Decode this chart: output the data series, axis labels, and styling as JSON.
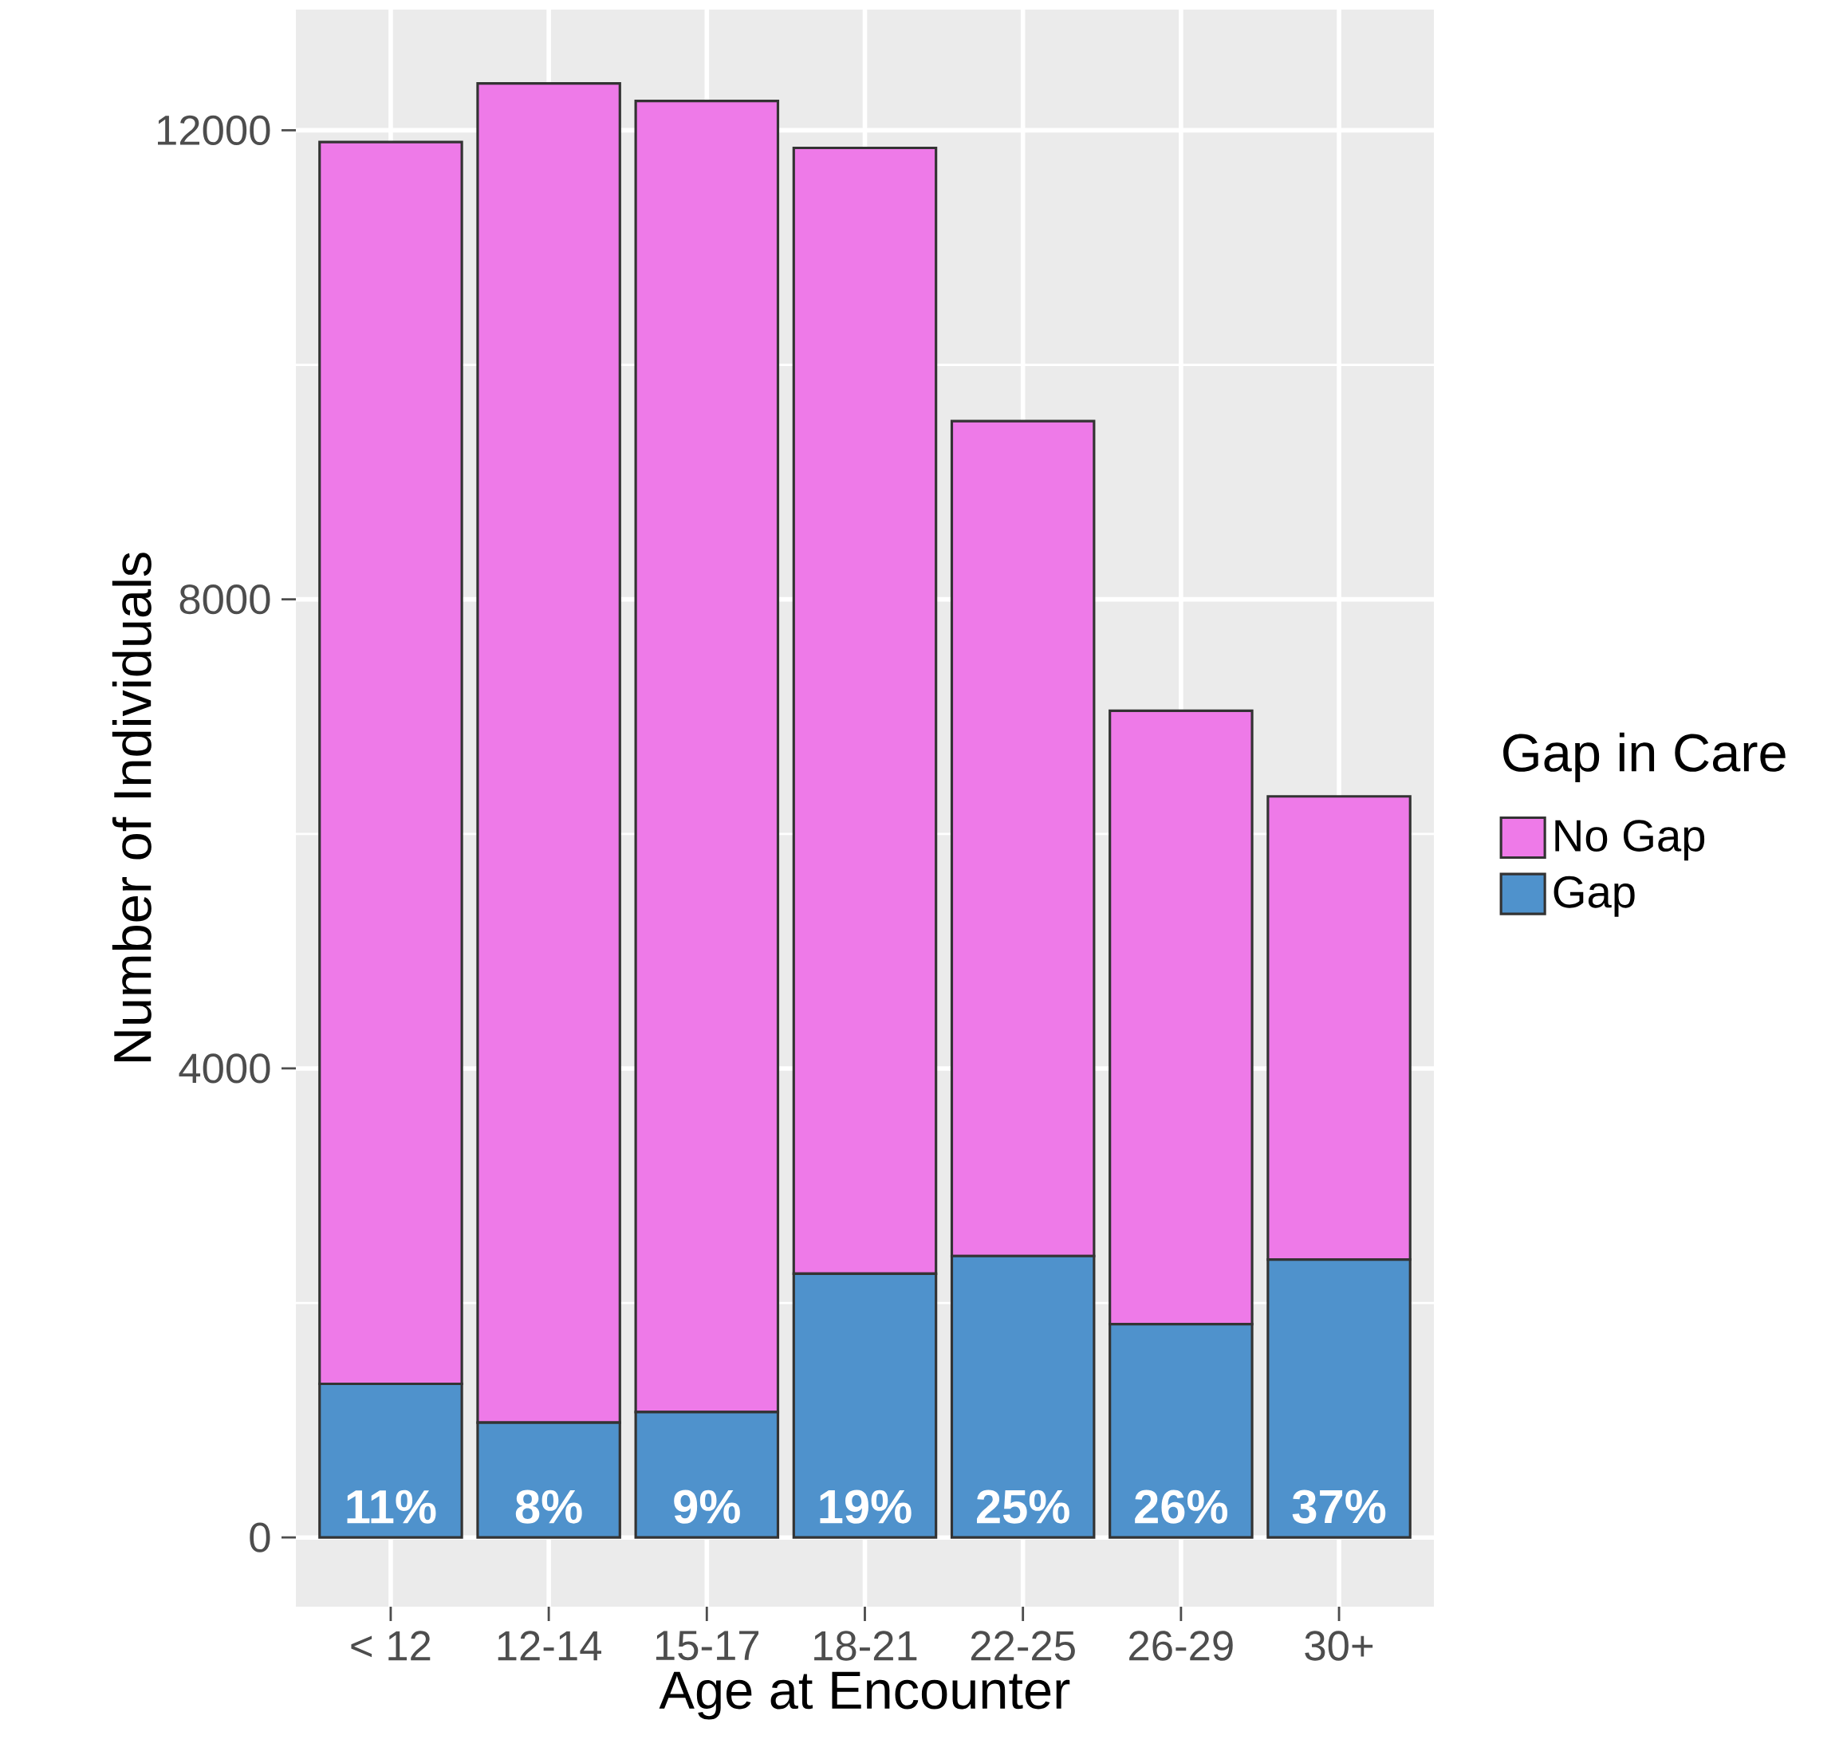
{
  "chart_data": {
    "type": "bar",
    "stacked": true,
    "xlabel": "Age at Encounter",
    "ylabel": "Number of Individuals",
    "legend_title": "Gap in Care",
    "categories": [
      "< 12",
      "12-14",
      "15-17",
      "18-21",
      "22-25",
      "26-29",
      "30+"
    ],
    "series": [
      {
        "name": "Gap",
        "color": "#4f92cc",
        "values": [
          1310,
          980,
          1070,
          2250,
          2400,
          1820,
          2370
        ]
      },
      {
        "name": "No Gap",
        "color": "#ee7ae8",
        "values": [
          10590,
          11420,
          11180,
          9600,
          7120,
          5230,
          3950
        ]
      }
    ],
    "annotations": [
      {
        "text": "11%",
        "x": "< 12",
        "y": 0
      },
      {
        "text": "8%",
        "x": "12-14",
        "y": 0
      },
      {
        "text": "9%",
        "x": "15-17",
        "y": 0
      },
      {
        "text": "19%",
        "x": "18-21",
        "y": 0
      },
      {
        "text": "25%",
        "x": "22-25",
        "y": 0
      },
      {
        "text": "26%",
        "x": "26-29",
        "y": 0
      },
      {
        "text": "37%",
        "x": "30+",
        "y": 0
      }
    ],
    "ylim": [
      -590,
      13030
    ],
    "yticks": [
      0,
      4000,
      8000,
      12000
    ],
    "grid": true,
    "legend": "right"
  }
}
